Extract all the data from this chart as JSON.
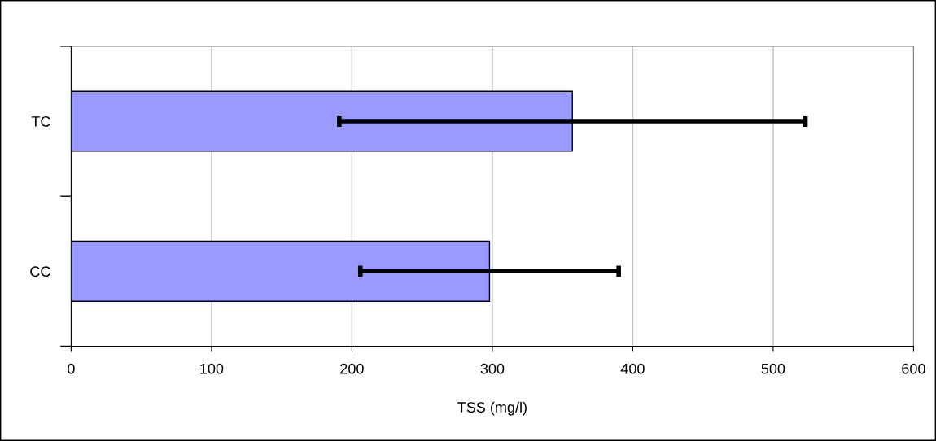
{
  "chart_data": {
    "type": "bar",
    "orientation": "horizontal",
    "xlabel": "TSS (mg/l)",
    "categories": [
      "TC",
      "CC"
    ],
    "values": [
      357,
      298
    ],
    "errors": [
      166,
      92
    ],
    "color": "#9999ff",
    "xlim": [
      0,
      600
    ],
    "xticks": [
      0,
      100,
      200,
      300,
      400,
      500,
      600
    ],
    "grid": "x"
  }
}
